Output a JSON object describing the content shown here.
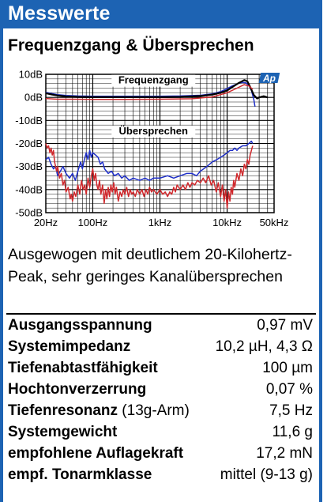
{
  "header": {
    "title": "Messwerte"
  },
  "chart_data": {
    "type": "line",
    "title": "Frequenzgang & Übersprechen",
    "xscale": "log",
    "xlim": [
      20,
      50000
    ],
    "ylim": [
      -50,
      10
    ],
    "x_tick_labels": [
      {
        "value": 20,
        "label": "20Hz"
      },
      {
        "value": 100,
        "label": "100Hz"
      },
      {
        "value": 1000,
        "label": "1kHz"
      },
      {
        "value": 10000,
        "label": "10kHz"
      },
      {
        "value": 50000,
        "label": "50kHz"
      }
    ],
    "y_tick_labels": [
      {
        "value": 10,
        "label": "10dB"
      },
      {
        "value": 0,
        "label": "0dB"
      },
      {
        "value": -10,
        "label": "-10dB"
      },
      {
        "value": -20,
        "label": "-20dB"
      },
      {
        "value": -30,
        "label": "-30dB"
      },
      {
        "value": -40,
        "label": "-40dB"
      },
      {
        "value": -50,
        "label": "-50dB"
      }
    ],
    "grid": true,
    "annotations": [
      {
        "text": "Frequenzgang",
        "x": 800,
        "y": 6
      },
      {
        "text": "Übersprechen",
        "x": 800,
        "y": -16
      }
    ],
    "logo": "Ap",
    "series": [
      {
        "name": "Frequenzgang L",
        "color": "#1f2fc9",
        "points": [
          [
            20,
            2.2
          ],
          [
            25,
            1.6
          ],
          [
            30,
            1.2
          ],
          [
            40,
            0.8
          ],
          [
            60,
            0.6
          ],
          [
            100,
            0.5
          ],
          [
            200,
            0.5
          ],
          [
            500,
            0.5
          ],
          [
            1000,
            0.5
          ],
          [
            2000,
            0.6
          ],
          [
            4000,
            0.9
          ],
          [
            6000,
            1.5
          ],
          [
            8000,
            2.5
          ],
          [
            10000,
            3.8
          ],
          [
            12000,
            5.0
          ],
          [
            15000,
            6.2
          ],
          [
            17000,
            6.5
          ],
          [
            19000,
            6.3
          ],
          [
            21000,
            5.2
          ],
          [
            23000,
            3.0
          ],
          [
            25000,
            -1
          ],
          [
            26000,
            -4
          ]
        ]
      },
      {
        "name": "Frequenzgang R",
        "color": "#000000",
        "points": [
          [
            20,
            1.8
          ],
          [
            25,
            1.2
          ],
          [
            30,
            0.8
          ],
          [
            40,
            0.4
          ],
          [
            60,
            0.2
          ],
          [
            100,
            0.1
          ],
          [
            200,
            0.1
          ],
          [
            500,
            0.1
          ],
          [
            1000,
            0.1
          ],
          [
            2000,
            0.2
          ],
          [
            4000,
            0.6
          ],
          [
            6000,
            1.2
          ],
          [
            8000,
            2.0
          ],
          [
            10000,
            3.0
          ],
          [
            12000,
            4.5
          ],
          [
            15000,
            6.3
          ],
          [
            18000,
            7.5
          ],
          [
            20000,
            7.0
          ],
          [
            22000,
            4.5
          ],
          [
            25000,
            1.0
          ],
          [
            28000,
            -0.5
          ],
          [
            30000,
            0
          ],
          [
            35000,
            0.5
          ],
          [
            40000,
            0
          ]
        ]
      },
      {
        "name": "Frequenzgang R2",
        "color": "#d0282c",
        "points": [
          [
            20,
            -0.5
          ],
          [
            30,
            -0.8
          ],
          [
            50,
            -0.8
          ],
          [
            100,
            -0.9
          ],
          [
            300,
            -0.9
          ],
          [
            1000,
            -0.8
          ],
          [
            3000,
            -0.6
          ],
          [
            6000,
            0.2
          ],
          [
            10000,
            2.0
          ],
          [
            14000,
            4.0
          ],
          [
            18000,
            5.5
          ],
          [
            21000,
            5.0
          ],
          [
            24000,
            3.5
          ]
        ]
      },
      {
        "name": "Übersprechen L",
        "color": "#1f2fc9",
        "points": [
          [
            20,
            -27
          ],
          [
            22,
            -26
          ],
          [
            24,
            -29
          ],
          [
            26,
            -31
          ],
          [
            28,
            -30
          ],
          [
            30,
            -34
          ],
          [
            33,
            -32
          ],
          [
            36,
            -30
          ],
          [
            40,
            -33
          ],
          [
            45,
            -35
          ],
          [
            50,
            -33
          ],
          [
            55,
            -36
          ],
          [
            60,
            -32
          ],
          [
            66,
            -28
          ],
          [
            70,
            -31
          ],
          [
            75,
            -27
          ],
          [
            80,
            -24
          ],
          [
            85,
            -27
          ],
          [
            90,
            -23
          ],
          [
            95,
            -26
          ],
          [
            100,
            -24
          ],
          [
            110,
            -25
          ],
          [
            120,
            -26
          ],
          [
            130,
            -29
          ],
          [
            140,
            -28
          ],
          [
            150,
            -31
          ],
          [
            170,
            -33
          ],
          [
            190,
            -32
          ],
          [
            210,
            -34
          ],
          [
            240,
            -33
          ],
          [
            270,
            -35
          ],
          [
            300,
            -34
          ],
          [
            350,
            -36
          ],
          [
            400,
            -35
          ],
          [
            500,
            -36
          ],
          [
            600,
            -35
          ],
          [
            700,
            -36
          ],
          [
            800,
            -35
          ],
          [
            1000,
            -35
          ],
          [
            1300,
            -34
          ],
          [
            1600,
            -35
          ],
          [
            2000,
            -34
          ],
          [
            2500,
            -33
          ],
          [
            3000,
            -33
          ],
          [
            3500,
            -34
          ],
          [
            4000,
            -32
          ],
          [
            5000,
            -30
          ],
          [
            6000,
            -28
          ],
          [
            7000,
            -27
          ],
          [
            8000,
            -26
          ],
          [
            9000,
            -25
          ],
          [
            10000,
            -24
          ],
          [
            11000,
            -23
          ],
          [
            12000,
            -23
          ],
          [
            13000,
            -22
          ],
          [
            14000,
            -23
          ],
          [
            15000,
            -22
          ],
          [
            17000,
            -21
          ],
          [
            19000,
            -21
          ],
          [
            21000,
            -20
          ],
          [
            23000,
            -19
          ],
          [
            24000,
            -20
          ]
        ]
      },
      {
        "name": "Übersprechen R",
        "color": "#d0282c",
        "points": [
          [
            20,
            -20
          ],
          [
            21,
            -22
          ],
          [
            22,
            -21
          ],
          [
            23,
            -24
          ],
          [
            24,
            -22
          ],
          [
            25,
            -25
          ],
          [
            26,
            -23
          ],
          [
            27,
            -28
          ],
          [
            29,
            -32
          ],
          [
            30,
            -30
          ],
          [
            32,
            -35
          ],
          [
            34,
            -33
          ],
          [
            36,
            -38
          ],
          [
            38,
            -36
          ],
          [
            40,
            -41
          ],
          [
            43,
            -39
          ],
          [
            46,
            -44
          ],
          [
            48,
            -42
          ],
          [
            50,
            -45
          ],
          [
            53,
            -41
          ],
          [
            56,
            -43
          ],
          [
            60,
            -38
          ],
          [
            64,
            -42
          ],
          [
            68,
            -36
          ],
          [
            72,
            -40
          ],
          [
            76,
            -38
          ],
          [
            80,
            -42
          ],
          [
            85,
            -35
          ],
          [
            90,
            -39
          ],
          [
            95,
            -34
          ],
          [
            100,
            -31
          ],
          [
            105,
            -36
          ],
          [
            110,
            -33
          ],
          [
            115,
            -38
          ],
          [
            120,
            -40
          ],
          [
            126,
            -36
          ],
          [
            132,
            -42
          ],
          [
            140,
            -38
          ],
          [
            148,
            -46
          ],
          [
            155,
            -40
          ],
          [
            162,
            -44
          ],
          [
            170,
            -39
          ],
          [
            178,
            -43
          ],
          [
            186,
            -38
          ],
          [
            195,
            -41
          ],
          [
            205,
            -37
          ],
          [
            215,
            -42
          ],
          [
            225,
            -39
          ],
          [
            240,
            -45
          ],
          [
            255,
            -41
          ],
          [
            270,
            -43
          ],
          [
            285,
            -40
          ],
          [
            300,
            -42
          ],
          [
            320,
            -39
          ],
          [
            340,
            -43
          ],
          [
            360,
            -40
          ],
          [
            380,
            -42
          ],
          [
            400,
            -41
          ],
          [
            430,
            -43
          ],
          [
            460,
            -40
          ],
          [
            500,
            -42
          ],
          [
            540,
            -40
          ],
          [
            580,
            -43
          ],
          [
            620,
            -40
          ],
          [
            660,
            -42
          ],
          [
            700,
            -39
          ],
          [
            750,
            -41
          ],
          [
            800,
            -40
          ],
          [
            900,
            -42
          ],
          [
            1000,
            -40
          ],
          [
            1100,
            -42
          ],
          [
            1200,
            -41
          ],
          [
            1300,
            -43
          ],
          [
            1400,
            -41
          ],
          [
            1500,
            -42
          ],
          [
            1600,
            -39
          ],
          [
            1700,
            -41
          ],
          [
            1800,
            -38
          ],
          [
            2000,
            -40
          ],
          [
            2200,
            -38
          ],
          [
            2400,
            -40
          ],
          [
            2600,
            -37
          ],
          [
            2800,
            -39
          ],
          [
            3000,
            -37
          ],
          [
            3300,
            -38
          ],
          [
            3600,
            -36
          ],
          [
            4000,
            -37
          ],
          [
            4400,
            -35
          ],
          [
            4800,
            -37
          ],
          [
            5300,
            -34
          ],
          [
            5800,
            -38
          ],
          [
            6300,
            -36
          ],
          [
            6900,
            -41
          ],
          [
            7400,
            -37
          ],
          [
            8000,
            -43
          ],
          [
            8500,
            -38
          ],
          [
            9000,
            -45
          ],
          [
            9500,
            -40
          ],
          [
            10000,
            -48
          ],
          [
            10500,
            -41
          ],
          [
            11000,
            -45
          ],
          [
            11500,
            -39
          ],
          [
            12000,
            -42
          ],
          [
            12500,
            -36
          ],
          [
            13000,
            -39
          ],
          [
            14000,
            -33
          ],
          [
            15000,
            -36
          ],
          [
            16000,
            -31
          ],
          [
            17000,
            -34
          ],
          [
            18000,
            -29
          ],
          [
            19000,
            -31
          ],
          [
            20000,
            -27
          ],
          [
            21000,
            -29
          ],
          [
            22000,
            -25
          ],
          [
            23000,
            -23
          ],
          [
            24000,
            -21
          ]
        ]
      }
    ]
  },
  "description": "Ausgewogen mit deutlichem 20-Kilohertz-Peak, sehr geringes Kanalübersprechen",
  "specs": [
    {
      "label": "Ausgangsspannung",
      "note": "",
      "value": "0,97 mV"
    },
    {
      "label": "Systemimpedanz",
      "note": "",
      "value": "10,2 µH, 4,3 Ω"
    },
    {
      "label": "Tiefenabtastfähigkeit",
      "note": "",
      "value": "100 µm"
    },
    {
      "label": "Hochtonverzerrung",
      "note": "",
      "value": "0,07 %"
    },
    {
      "label": "Tiefenresonanz",
      "note": " (13g-Arm)",
      "value": "7,5 Hz"
    },
    {
      "label": "Systemgewicht",
      "note": "",
      "value": "11,6 g"
    },
    {
      "label": "empfohlene Auflagekraft",
      "note": "",
      "value": "17,2 mN"
    },
    {
      "label": "empf. Tonarmklasse",
      "note": "",
      "value": "mittel (9-13 g)"
    }
  ]
}
